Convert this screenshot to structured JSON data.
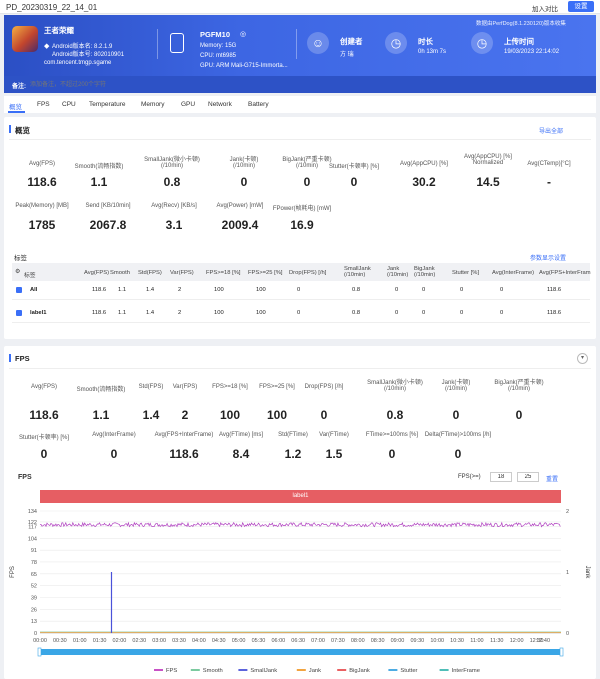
{
  "topbar": {
    "title": "PD_20230319_22_14_01",
    "compare": "加入对比",
    "settings": "设置"
  },
  "banner": {
    "app_name": "王者荣耀",
    "android_ver": "Android版本名: 8.2.1.9",
    "android_code": "Android版本号: 802010901",
    "package": "com.tencent.tmgp.sgame",
    "device_name": "PGFM10",
    "memory": "Memory: 15G",
    "cpu": "CPU: mt6985",
    "gpu": "GPU: ARM Mali-G715-Immorta...",
    "creator_label": "创建者",
    "creator_value": "方 瑞",
    "duration_label": "时长",
    "duration_value": "0h 13m 7s",
    "upload_label": "上传时间",
    "upload_value": "19/03/2023 22:14:02",
    "perfdog_version": "数据由PerfDog(8.1.230120)版本收集",
    "note_label": "备注:",
    "note_placeholder": "添加备注，不超过200个字符"
  },
  "tabs": [
    "概览",
    "FPS",
    "CPU",
    "Temperature",
    "Memory",
    "GPU",
    "Network",
    "Battery"
  ],
  "overview": {
    "title": "概览",
    "export": "导出全部",
    "row1": [
      {
        "label": "Avg(FPS)",
        "value": "118.6"
      },
      {
        "label": "Smooth(流畅指数)",
        "value": "1.1"
      },
      {
        "label": "SmallJank(微小卡顿)\n(/10min)",
        "value": "0.8"
      },
      {
        "label": "Jank(卡顿)\n(/10min)",
        "value": "0"
      },
      {
        "label": "BigJank(严重卡顿)\n(/10min)",
        "value": "0"
      },
      {
        "label": "Stutter(卡顿率) [%]",
        "value": "0"
      },
      {
        "label": "Avg(AppCPU) [%]",
        "value": "30.2"
      },
      {
        "label": "Avg(AppCPU) [%]\nNormalized",
        "value": "14.5"
      },
      {
        "label": "Avg(CTemp)[°C]",
        "value": "-"
      }
    ],
    "row2": [
      {
        "label": "Peak(Memory) [MB]",
        "value": "1785"
      },
      {
        "label": "Send [KB/10min]",
        "value": "2067.8"
      },
      {
        "label": "Avg(Recv) [KB/s]",
        "value": "3.1"
      },
      {
        "label": "Avg(Power) [mW]",
        "value": "2009.4"
      },
      {
        "label": "FPower(帧耗电) [mW]",
        "value": "16.9"
      }
    ]
  },
  "labels_table": {
    "title": "标签",
    "more": "参数显示设置",
    "headers": [
      "标签",
      "Avg(FPS)",
      "Smooth",
      "Std(FPS)",
      "Var(FPS)",
      "FPS>=18 [%]",
      "FPS>=25 [%]",
      "Drop(FPS) [/h]",
      "SmallJank\n(/10min)",
      "Jank\n(/10min)",
      "BigJank\n(/10min)",
      "Stutter [%]",
      "Avg(InterFrame)",
      "Avg(FPS+InterFram"
    ],
    "rows": [
      [
        "All",
        "118.6",
        "1.1",
        "1.4",
        "2",
        "100",
        "100",
        "0",
        "0.8",
        "0",
        "0",
        "0",
        "0",
        "118.6"
      ],
      [
        "label1",
        "118.6",
        "1.1",
        "1.4",
        "2",
        "100",
        "100",
        "0",
        "0.8",
        "0",
        "0",
        "0",
        "0",
        "118.6"
      ]
    ]
  },
  "fps": {
    "title": "FPS",
    "row1": [
      {
        "label": "Avg(FPS)",
        "value": "118.6"
      },
      {
        "label": "Smooth(流畅指数)",
        "value": "1.1"
      },
      {
        "label": "Std(FPS)",
        "value": "1.4"
      },
      {
        "label": "Var(FPS)",
        "value": "2"
      },
      {
        "label": "FPS>=18 [%]",
        "value": "100"
      },
      {
        "label": "FPS>=25 [%]",
        "value": "100"
      },
      {
        "label": "Drop(FPS) [/h]",
        "value": "0"
      },
      {
        "label": "SmallJank(微小卡顿)\n(/10min)",
        "value": "0.8"
      },
      {
        "label": "Jank(卡顿)\n(/10min)",
        "value": "0"
      },
      {
        "label": "BigJank(严重卡顿)\n(/10min)",
        "value": "0"
      }
    ],
    "row2": [
      {
        "label": "Stutter(卡顿率) [%]",
        "value": "0"
      },
      {
        "label": "Avg(InterFrame)",
        "value": "0"
      },
      {
        "label": "Avg(FPS+InterFrame)",
        "value": "118.6"
      },
      {
        "label": "Avg(FTime) [ms]",
        "value": "8.4"
      },
      {
        "label": "Std(FTime)",
        "value": "1.2"
      },
      {
        "label": "Var(FTime)",
        "value": "1.5"
      },
      {
        "label": "FTime>=100ms [%]",
        "value": "0"
      },
      {
        "label": "Delta(FTime)>100ms [/h]",
        "value": "0"
      }
    ],
    "chart_label": "FPS",
    "threshold_label": "FPS(>=)",
    "threshold_a": "18",
    "threshold_b": "25",
    "apply": "重置",
    "label_bar": "label1"
  },
  "chart_data": {
    "type": "line",
    "title": "FPS",
    "ylabel": "FPS",
    "y2label": "Jank",
    "ylim": [
      0,
      134
    ],
    "y2lim": [
      0,
      2
    ],
    "yticks": [
      0,
      13,
      26,
      39,
      52,
      65,
      78,
      91,
      104,
      117,
      122,
      134
    ],
    "y2ticks": [
      0,
      1,
      2
    ],
    "xlim": [
      0,
      787
    ],
    "xticks": [
      "00:00",
      "00:30",
      "01:00",
      "01:30",
      "02:00",
      "02:30",
      "03:00",
      "03:30",
      "04:00",
      "04:30",
      "05:00",
      "05:30",
      "06:00",
      "06:30",
      "07:00",
      "07:30",
      "08:00",
      "08:30",
      "09:00",
      "09:30",
      "10:00",
      "10:30",
      "11:00",
      "11:30",
      "12:00",
      "12:30",
      "12:40"
    ],
    "series": [
      {
        "name": "FPS",
        "color": "#b040c0",
        "base": 119,
        "noise": 2.2
      },
      {
        "name": "Smooth",
        "color": "#7fc99a",
        "base": 1.1
      },
      {
        "name": "SmallJank",
        "color": "#4a52d9",
        "spike_at": 108,
        "spike_value": 1
      }
    ],
    "legend": [
      {
        "name": "FPS",
        "color": "#c23fbf"
      },
      {
        "name": "Smooth",
        "color": "#6dc596"
      },
      {
        "name": "SmallJank",
        "color": "#4a52d9"
      },
      {
        "name": "Jank",
        "color": "#f09a2a"
      },
      {
        "name": "BigJank",
        "color": "#e84f50"
      },
      {
        "name": "Stutter",
        "color": "#39a2e0"
      },
      {
        "name": "InterFrame",
        "color": "#3bb6b0"
      }
    ]
  }
}
